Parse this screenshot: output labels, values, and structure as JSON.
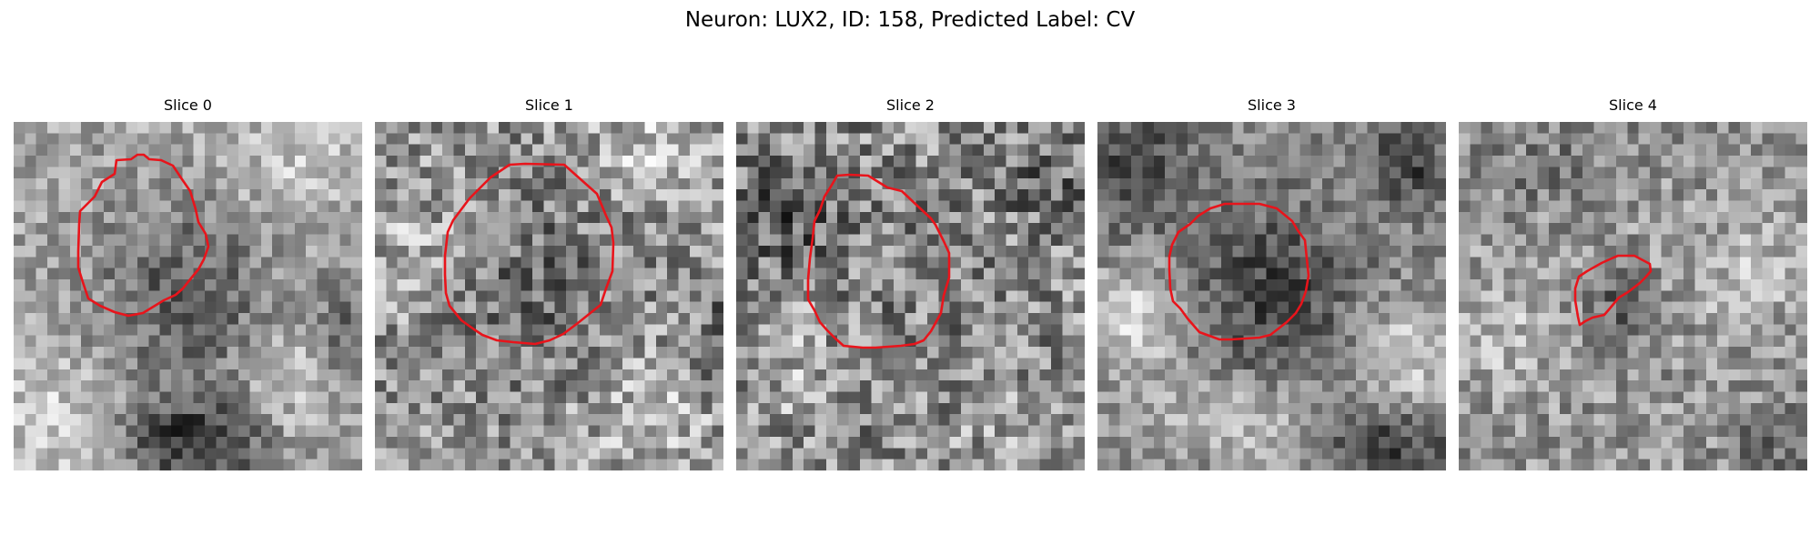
{
  "figure": {
    "title": "Neuron: LUX2, ID: 158, Predicted Label: CV"
  },
  "colors": {
    "contour": "#e8141b",
    "background": "#ffffff"
  },
  "image_style": {
    "colormap": "grayscale",
    "grid_size": [
      31,
      31
    ]
  },
  "slices": [
    {
      "title": "Slice 0",
      "mask": "red-contour"
    },
    {
      "title": "Slice 1",
      "mask": "red-contour"
    },
    {
      "title": "Slice 2",
      "mask": "red-contour"
    },
    {
      "title": "Slice 3",
      "mask": "red-contour"
    },
    {
      "title": "Slice 4",
      "mask": "red-contour"
    }
  ]
}
